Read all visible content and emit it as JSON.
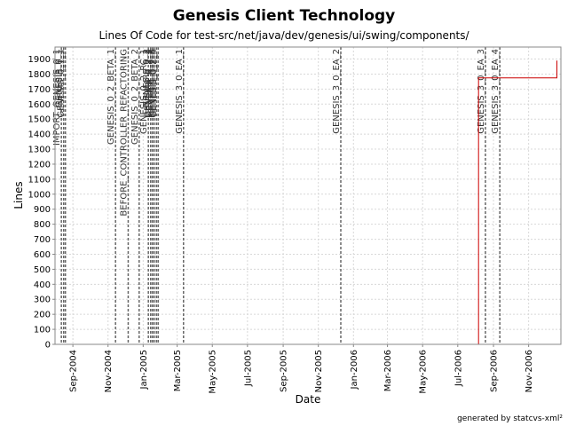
{
  "chart_data": {
    "type": "line",
    "title": "Genesis Client Technology",
    "subtitle": "Lines Of Code for test-src/net/java/dev/genesis/ui/swing/components/",
    "xlabel": "Date",
    "ylabel": "Lines",
    "footer": "generated by statcvs-xml²",
    "xlim": [
      "2004-08-01",
      "2006-12-27"
    ],
    "ylim": [
      0,
      1980
    ],
    "yticks": [
      0,
      100,
      200,
      300,
      400,
      500,
      600,
      700,
      800,
      900,
      1000,
      1100,
      1200,
      1300,
      1400,
      1500,
      1600,
      1700,
      1800,
      1900
    ],
    "xticks": [
      {
        "date": "2004-09-01",
        "label": "Sep-2004"
      },
      {
        "date": "2004-11-01",
        "label": "Nov-2004"
      },
      {
        "date": "2005-01-01",
        "label": "Jan-2005"
      },
      {
        "date": "2005-03-01",
        "label": "Mar-2005"
      },
      {
        "date": "2005-05-01",
        "label": "May-2005"
      },
      {
        "date": "2005-07-01",
        "label": "Jul-2005"
      },
      {
        "date": "2005-09-01",
        "label": "Sep-2005"
      },
      {
        "date": "2005-11-01",
        "label": "Nov-2005"
      },
      {
        "date": "2006-01-01",
        "label": "Jan-2006"
      },
      {
        "date": "2006-03-01",
        "label": "Mar-2006"
      },
      {
        "date": "2006-05-01",
        "label": "May-2006"
      },
      {
        "date": "2006-07-01",
        "label": "Jul-2006"
      },
      {
        "date": "2006-09-01",
        "label": "Sep-2006"
      },
      {
        "date": "2006-11-01",
        "label": "Nov-2006"
      }
    ],
    "grid": true,
    "series": [
      {
        "color": "#cc0000",
        "points": [
          {
            "date": "2004-08-01",
            "value": 0
          },
          {
            "date": "2006-08-06",
            "value": 0
          },
          {
            "date": "2006-08-06",
            "value": 1775
          },
          {
            "date": "2006-12-20",
            "value": 1775
          },
          {
            "date": "2006-12-20",
            "value": 1890
          }
        ]
      }
    ],
    "markers": [
      {
        "date": "2004-08-12",
        "label": "IMPORT_GENESIS_0_1"
      },
      {
        "date": "2004-08-16",
        "label": "GENESIS_0_1"
      },
      {
        "date": "2004-08-19",
        "label": "GENESIS_0_1_1"
      },
      {
        "date": "2004-11-14",
        "label": "GENESIS_0_2_BETA_1"
      },
      {
        "date": "2004-12-06",
        "label": "BEFORE_CONTROLLER_REFACTORING"
      },
      {
        "date": "2004-12-25",
        "label": "GENESIS_0_2_BETA_2"
      },
      {
        "date": "2005-01-10",
        "label": "GENESIS_0_2_RC_1"
      },
      {
        "date": "2005-01-14",
        "label": "GENESIS_0_2"
      },
      {
        "date": "2005-01-17",
        "label": "GENESIS_0_2_1"
      },
      {
        "date": "2005-01-20",
        "label": "GENESIS_0_2_2"
      },
      {
        "date": "2005-01-24",
        "label": "GENESIS_0_2_3"
      },
      {
        "date": "2005-01-27",
        "label": "GENESIS_0_2_4"
      },
      {
        "date": "2005-03-12",
        "label": "GENESIS_3_0_EA_1"
      },
      {
        "date": "2005-12-10",
        "label": "GENESIS_3_0_EA_2"
      },
      {
        "date": "2006-08-18",
        "label": "GENESIS_3_0_EA_3"
      },
      {
        "date": "2006-09-12",
        "label": "GENESIS_3_0_EA_4"
      }
    ]
  }
}
